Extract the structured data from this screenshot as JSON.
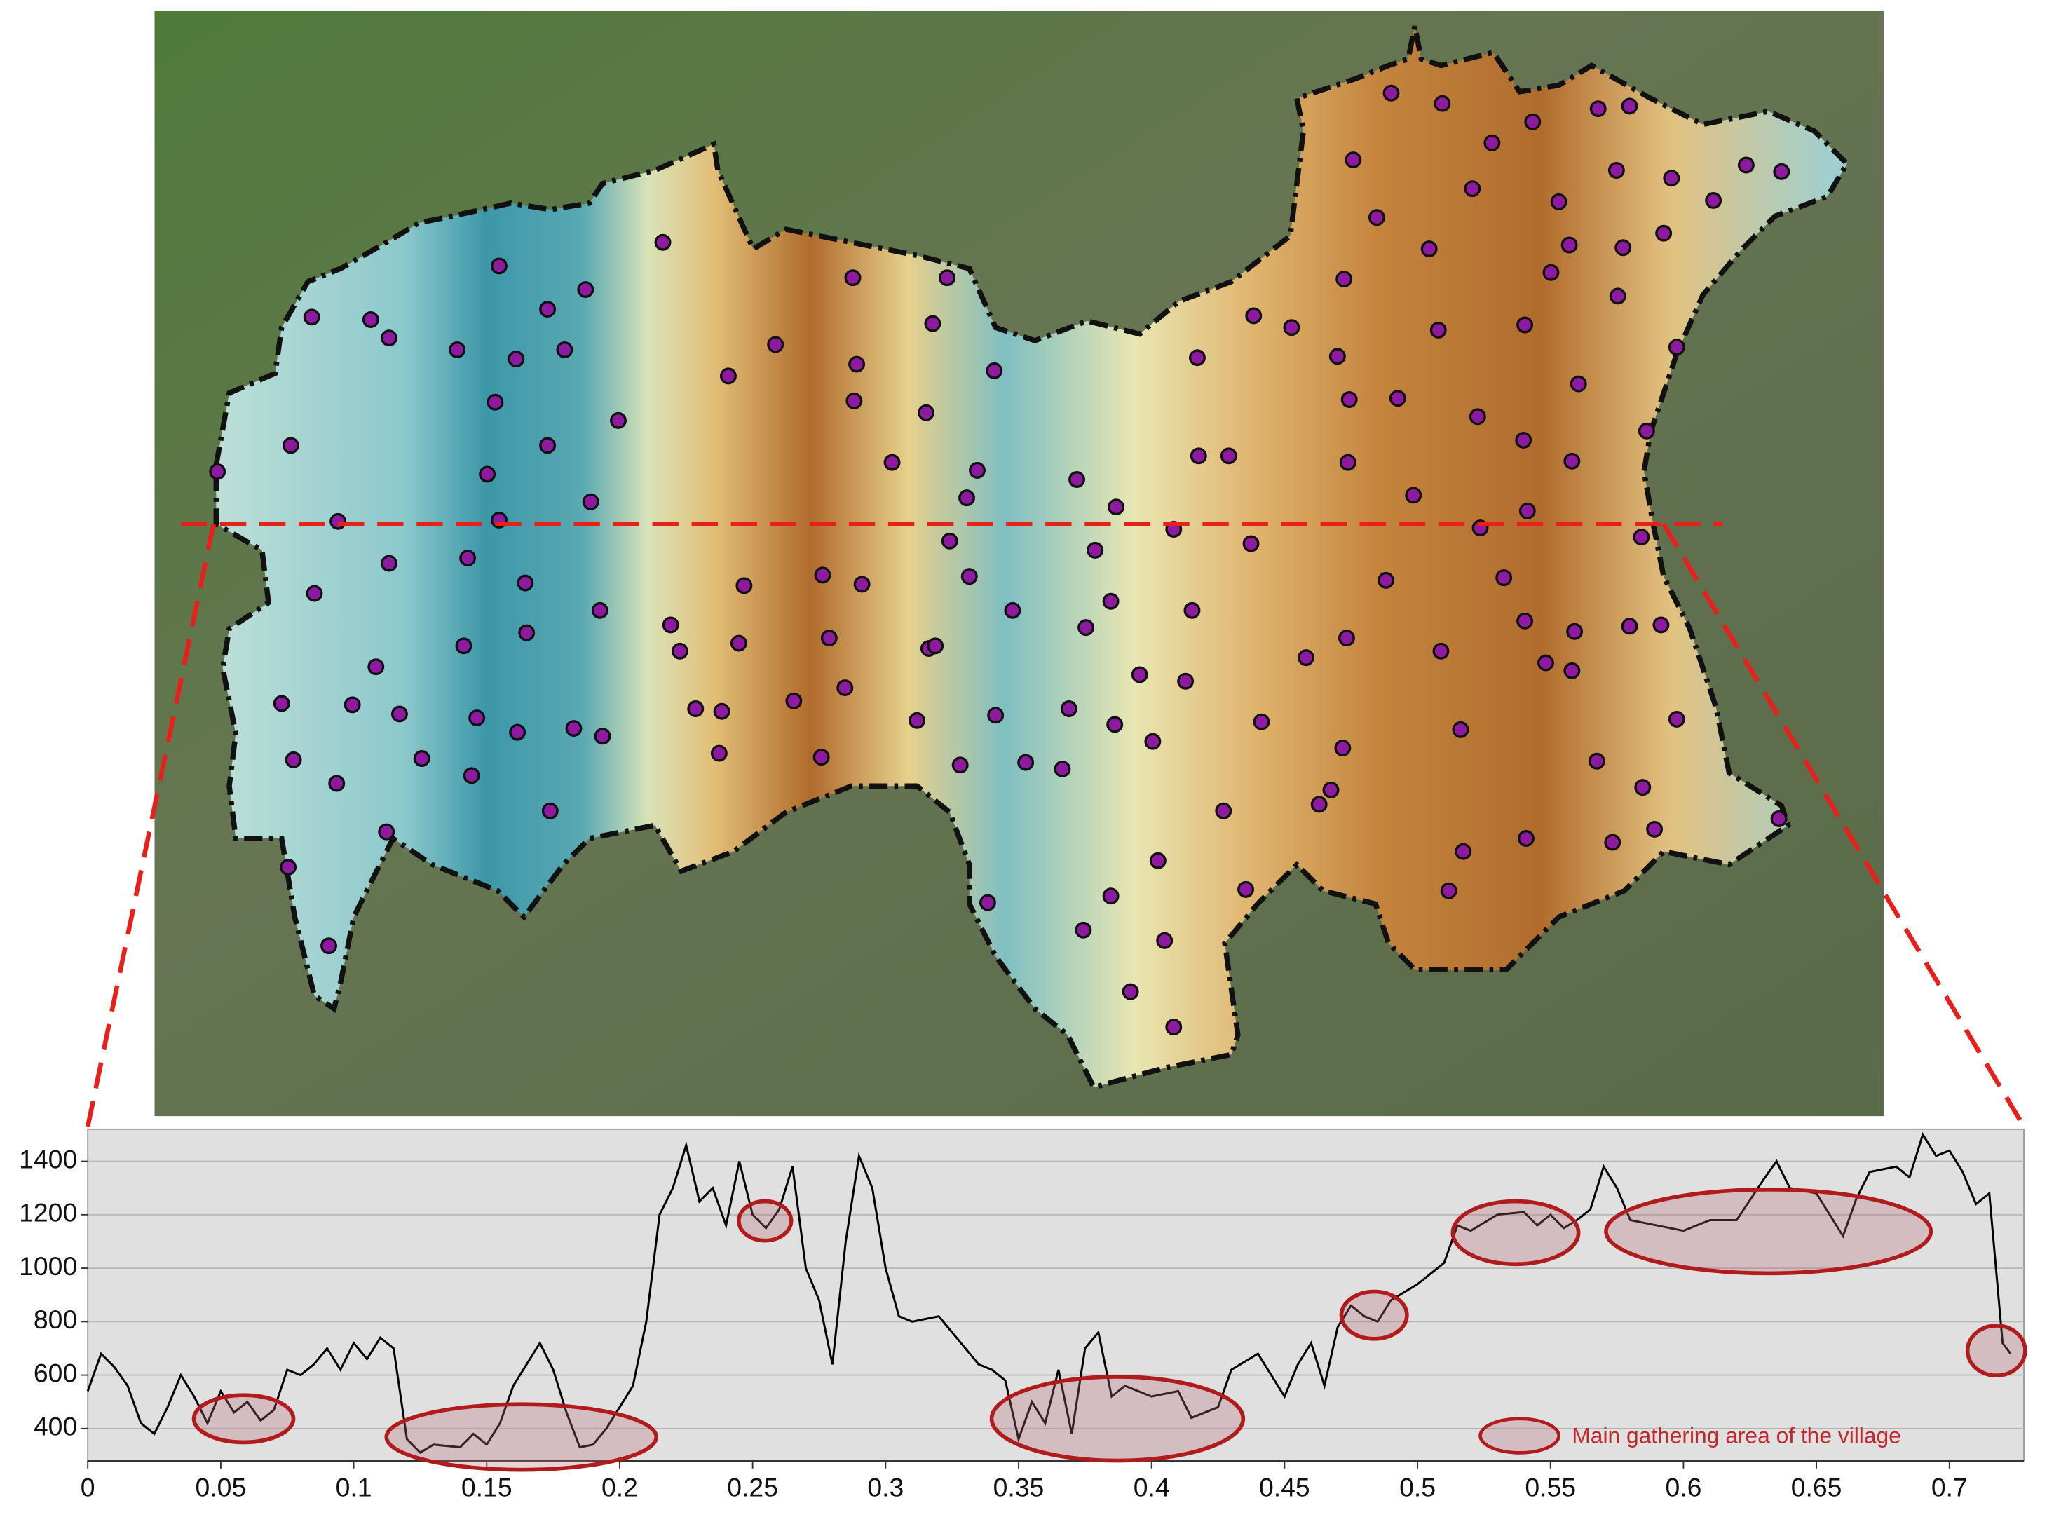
{
  "chart_data": {
    "type": "line",
    "x": [
      0,
      0.005,
      0.01,
      0.015,
      0.02,
      0.025,
      0.03,
      0.035,
      0.04,
      0.045,
      0.05,
      0.055,
      0.06,
      0.065,
      0.07,
      0.075,
      0.08,
      0.085,
      0.09,
      0.095,
      0.1,
      0.105,
      0.11,
      0.115,
      0.12,
      0.125,
      0.13,
      0.14,
      0.145,
      0.15,
      0.155,
      0.16,
      0.165,
      0.17,
      0.175,
      0.18,
      0.185,
      0.19,
      0.195,
      0.2,
      0.205,
      0.21,
      0.215,
      0.22,
      0.225,
      0.23,
      0.235,
      0.24,
      0.245,
      0.25,
      0.255,
      0.26,
      0.265,
      0.27,
      0.275,
      0.28,
      0.285,
      0.29,
      0.295,
      0.3,
      0.305,
      0.31,
      0.32,
      0.33,
      0.335,
      0.34,
      0.345,
      0.35,
      0.355,
      0.36,
      0.365,
      0.37,
      0.375,
      0.38,
      0.385,
      0.39,
      0.4,
      0.41,
      0.415,
      0.42,
      0.425,
      0.43,
      0.44,
      0.45,
      0.455,
      0.46,
      0.465,
      0.47,
      0.475,
      0.48,
      0.485,
      0.49,
      0.5,
      0.51,
      0.515,
      0.52,
      0.53,
      0.54,
      0.545,
      0.55,
      0.555,
      0.56,
      0.565,
      0.57,
      0.575,
      0.58,
      0.59,
      0.6,
      0.61,
      0.62,
      0.63,
      0.635,
      0.64,
      0.65,
      0.66,
      0.665,
      0.67,
      0.68,
      0.685,
      0.69,
      0.695,
      0.7,
      0.705,
      0.71,
      0.715,
      0.72,
      0.723
    ],
    "values": [
      540,
      680,
      630,
      560,
      420,
      380,
      480,
      600,
      520,
      420,
      540,
      460,
      500,
      430,
      470,
      620,
      600,
      640,
      700,
      620,
      720,
      660,
      740,
      700,
      360,
      310,
      340,
      330,
      380,
      340,
      420,
      560,
      640,
      720,
      620,
      460,
      330,
      340,
      400,
      480,
      560,
      800,
      1200,
      1300,
      1460,
      1250,
      1300,
      1160,
      1400,
      1200,
      1150,
      1220,
      1380,
      1000,
      880,
      640,
      1100,
      1420,
      1300,
      1000,
      820,
      800,
      820,
      700,
      640,
      620,
      580,
      360,
      500,
      420,
      620,
      380,
      700,
      760,
      520,
      560,
      520,
      540,
      440,
      460,
      480,
      620,
      680,
      520,
      640,
      720,
      560,
      780,
      860,
      820,
      800,
      880,
      940,
      1020,
      1160,
      1140,
      1200,
      1210,
      1160,
      1200,
      1150,
      1180,
      1220,
      1380,
      1300,
      1180,
      1160,
      1140,
      1180,
      1180,
      1330,
      1400,
      1300,
      1280,
      1120,
      1260,
      1360,
      1380,
      1340,
      1500,
      1420,
      1440,
      1360,
      1240,
      1280,
      720,
      680
    ],
    "color": "#000000",
    "xlim": [
      0,
      0.728
    ],
    "ylim": [
      280,
      1520
    ],
    "xticks": [
      0,
      0.05,
      0.1,
      0.15,
      0.2,
      0.25,
      0.3,
      0.35,
      0.4,
      0.45,
      0.5,
      0.55,
      0.6,
      0.65,
      0.7
    ],
    "yticks": [
      400,
      600,
      800,
      1000,
      1200,
      1400
    ],
    "grid": true,
    "legend": {
      "label": "Main gathering area of the village",
      "color": "#c0282a"
    }
  }
}
